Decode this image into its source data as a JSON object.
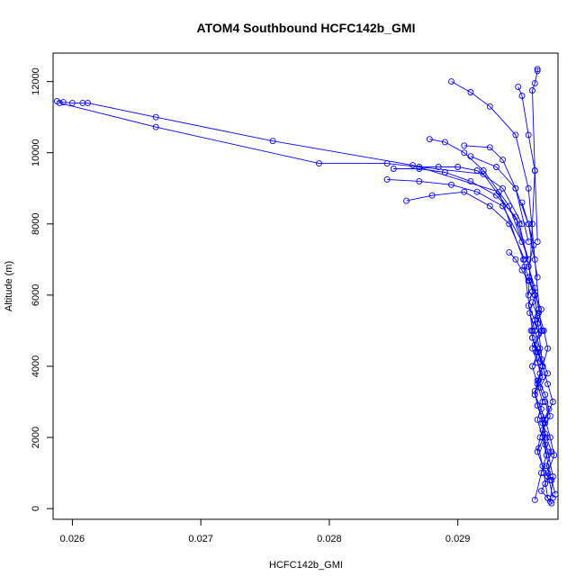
{
  "chart_data": {
    "type": "scatter",
    "title": "ATOM4 Southbound HCFC142b_GMI",
    "xlabel": "HCFC142b_GMI",
    "ylabel": "Altitude (m)",
    "xlim": [
      0.02585,
      0.02978
    ],
    "ylim": [
      -300,
      12800
    ],
    "xticks": [
      0.026,
      0.027,
      0.028,
      0.029
    ],
    "xtick_labels": [
      "0.026",
      "0.027",
      "0.028",
      "0.029"
    ],
    "yticks": [
      0,
      2000,
      4000,
      6000,
      8000,
      10000,
      12000
    ],
    "ytick_labels": [
      "0",
      "2000",
      "4000",
      "6000",
      "8000",
      "10000",
      "12000"
    ],
    "marker": "open-circle",
    "line": "connected",
    "color": "#0000ff",
    "grid": false,
    "legend": "none",
    "series": [
      {
        "x": [
          0.02588,
          0.02593,
          0.026,
          0.02608,
          0.02612,
          0.02665,
          0.02756,
          0.02865,
          0.02932,
          0.02951,
          0.02958
        ],
        "y": [
          11450,
          11420,
          11400,
          11400,
          11400,
          11000,
          10330,
          9650,
          8900,
          7000,
          5000
        ]
      },
      {
        "x": [
          0.0259,
          0.02665,
          0.02792,
          0.02845,
          0.0292,
          0.02948,
          0.0296,
          0.02966
        ],
        "y": [
          11400,
          10720,
          9700,
          9700,
          9400,
          8000,
          6000,
          4000
        ]
      },
      {
        "x": [
          0.02895,
          0.0291,
          0.02925,
          0.02945,
          0.02955,
          0.0296,
          0.02965
        ],
        "y": [
          12000,
          11700,
          11300,
          10500,
          9000,
          7000,
          5000
        ]
      },
      {
        "x": [
          0.02962,
          0.02962,
          0.0296,
          0.02958,
          0.0296,
          0.02962
        ],
        "y": [
          12350,
          12300,
          11950,
          11750,
          9500,
          7500
        ]
      },
      {
        "x": [
          0.02947,
          0.0295,
          0.02955,
          0.0296,
          0.02958,
          0.02955
        ],
        "y": [
          11850,
          11600,
          10500,
          9500,
          8000,
          6000
        ]
      },
      {
        "x": [
          0.02878,
          0.0289,
          0.02905,
          0.0292,
          0.0294,
          0.02955
        ],
        "y": [
          10380,
          10300,
          10000,
          9500,
          8500,
          7000
        ]
      },
      {
        "x": [
          0.0285,
          0.0287,
          0.0289,
          0.0291,
          0.0293,
          0.02945,
          0.02955
        ],
        "y": [
          9550,
          9550,
          9450,
          9200,
          8800,
          8200,
          7000
        ]
      },
      {
        "x": [
          0.0287,
          0.02885,
          0.029,
          0.02915,
          0.02935,
          0.0295
        ],
        "y": [
          9600,
          9600,
          9600,
          9500,
          9000,
          8000
        ]
      },
      {
        "x": [
          0.02845,
          0.0287,
          0.02895,
          0.02915,
          0.02935,
          0.0295
        ],
        "y": [
          9250,
          9200,
          9100,
          8900,
          8500,
          7500
        ]
      },
      {
        "x": [
          0.02905,
          0.02925,
          0.02935,
          0.02945,
          0.02955
        ],
        "y": [
          10200,
          10150,
          9800,
          9000,
          7500
        ]
      },
      {
        "x": [
          0.0291,
          0.0293,
          0.02945,
          0.02955,
          0.02962
        ],
        "y": [
          9900,
          9600,
          9000,
          8000,
          6500
        ]
      },
      {
        "x": [
          0.0286,
          0.0288,
          0.02905,
          0.02925,
          0.0294,
          0.02952
        ],
        "y": [
          8650,
          8800,
          8900,
          8500,
          8000,
          7000
        ]
      },
      {
        "x": [
          0.0294,
          0.02945,
          0.0295,
          0.02955
        ],
        "y": [
          7200,
          7000,
          6700,
          6400
        ]
      },
      {
        "x": [
          0.0296,
          0.02965,
          0.02962,
          0.02958,
          0.02963,
          0.02966,
          0.02962,
          0.0296,
          0.02965,
          0.02968,
          0.02964,
          0.02962,
          0.02966,
          0.0297,
          0.02968,
          0.02965,
          0.0297,
          0.02973
        ],
        "y": [
          6000,
          5600,
          5200,
          4800,
          4400,
          4000,
          3600,
          3200,
          2800,
          2400,
          2000,
          1600,
          1200,
          900,
          700,
          500,
          300,
          150
        ]
      },
      {
        "x": [
          0.02955,
          0.02958,
          0.02955,
          0.0296,
          0.02963,
          0.02958,
          0.02962,
          0.02966,
          0.0296,
          0.02962,
          0.02966,
          0.02968,
          0.02963,
          0.02967,
          0.0297
        ],
        "y": [
          6500,
          6100,
          5700,
          5300,
          4900,
          4500,
          4100,
          3700,
          3300,
          2900,
          2500,
          2100,
          1700,
          1000,
          300
        ]
      },
      {
        "x": [
          0.02958,
          0.02962,
          0.02966,
          0.0296,
          0.02965,
          0.0297,
          0.02964,
          0.02968,
          0.02972,
          0.02966,
          0.0297,
          0.02974,
          0.02972
        ],
        "y": [
          5800,
          5400,
          5000,
          4600,
          4200,
          3800,
          3400,
          3000,
          2600,
          2200,
          1600,
          900,
          200
        ]
      },
      {
        "x": [
          0.02952,
          0.02956,
          0.0296,
          0.02956,
          0.0296,
          0.02964,
          0.02958,
          0.02962,
          0.02966,
          0.02962,
          0.02966,
          0.02969,
          0.02965,
          0.0296
        ],
        "y": [
          6800,
          6400,
          6000,
          5500,
          5000,
          4500,
          4000,
          3500,
          3000,
          2500,
          2000,
          1500,
          1000,
          250
        ]
      },
      {
        "x": [
          0.02963,
          0.02967,
          0.0297,
          0.02966,
          0.0297,
          0.02974,
          0.02968,
          0.02972,
          0.02975,
          0.0297,
          0.02974
        ],
        "y": [
          5500,
          5000,
          4500,
          4000,
          3500,
          3000,
          2500,
          2000,
          1500,
          1000,
          300
        ]
      },
      {
        "x": [
          0.0295,
          0.02955,
          0.02959,
          0.02955,
          0.0296,
          0.02963,
          0.02957,
          0.02961,
          0.02964,
          0.0296,
          0.02965,
          0.02968,
          0.02972
        ],
        "y": [
          8600,
          8000,
          7400,
          6800,
          6200,
          5600,
          5000,
          4400,
          3800,
          3200,
          2600,
          1800,
          800
        ]
      },
      {
        "x": [
          0.02958,
          0.02962,
          0.02966,
          0.02963,
          0.02968,
          0.02971,
          0.02966,
          0.02969,
          0.02973,
          0.02969,
          0.02973,
          0.02976
        ],
        "y": [
          4800,
          4400,
          4000,
          3600,
          3200,
          2800,
          2400,
          2000,
          1600,
          1200,
          800,
          400
        ]
      }
    ]
  }
}
